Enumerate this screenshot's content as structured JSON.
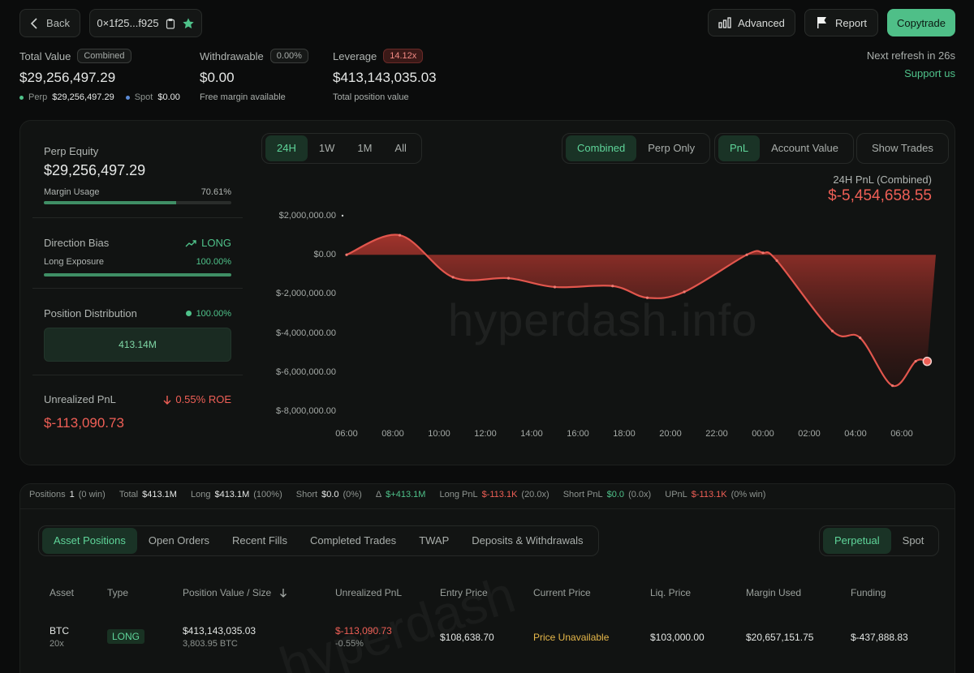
{
  "header": {
    "back_label": "Back",
    "address": "0×1f25...f925",
    "advanced_label": "Advanced",
    "report_label": "Report",
    "copytrade_label": "Copytrade",
    "refresh_text": "Next refresh in 26s",
    "support_label": "Support us"
  },
  "summary": {
    "total_value_label": "Total Value",
    "total_value_badge": "Combined",
    "total_value": "$29,256,497.29",
    "perp_label": "Perp",
    "perp_value": "$29,256,497.29",
    "spot_label": "Spot",
    "spot_value": "$0.00",
    "withdrawable_label": "Withdrawable",
    "withdrawable_badge": "0.00%",
    "withdrawable_value": "$0.00",
    "withdrawable_sub": "Free margin available",
    "leverage_label": "Leverage",
    "leverage_badge": "14.12x",
    "leverage_value": "$413,143,035.03",
    "leverage_sub": "Total position value"
  },
  "left_panel": {
    "perp_equity_label": "Perp Equity",
    "perp_equity_value": "$29,256,497.29",
    "margin_usage_label": "Margin Usage",
    "margin_usage_value": "70.61%",
    "margin_usage_fraction": 0.7061,
    "direction_bias_label": "Direction Bias",
    "direction_bias_value": "LONG",
    "long_exposure_label": "Long Exposure",
    "long_exposure_value": "100.00%",
    "long_exposure_fraction": 1.0,
    "position_distribution_label": "Position Distribution",
    "position_distribution_value": "100.00%",
    "distribution_block": "413.14M",
    "unrealized_pnl_label": "Unrealized PnL",
    "roe_value": "0.55% ROE",
    "unrealized_pnl_value": "$-113,090.73"
  },
  "chart_controls": {
    "timeframes": [
      "24H",
      "1W",
      "1M",
      "All"
    ],
    "active_timeframe": "24H",
    "modes": [
      "Combined",
      "Perp Only"
    ],
    "active_mode": "Combined",
    "metrics": [
      "PnL",
      "Account Value"
    ],
    "active_metric": "PnL",
    "show_trades_label": "Show Trades"
  },
  "chart_data": {
    "type": "area",
    "title": "24H PnL (Combined)",
    "headline_value": "$-5,454,658.55",
    "watermark": "hyperdash.info",
    "y_ticks": [
      "$2,000,000.00",
      "$0.00",
      "$-2,000,000.00",
      "$-4,000,000.00",
      "$-6,000,000.00",
      "$-8,000,000.00"
    ],
    "y_tick_values": [
      2000000,
      0,
      -2000000,
      -4000000,
      -6000000,
      -8000000
    ],
    "ylim": [
      -8000000,
      2000000
    ],
    "x_ticks": [
      "06:00",
      "08:00",
      "10:00",
      "12:00",
      "14:00",
      "16:00",
      "18:00",
      "20:00",
      "22:00",
      "00:00",
      "02:00",
      "04:00",
      "06:00"
    ],
    "x": [
      0,
      2.3,
      4.6,
      7,
      9,
      11.5,
      13,
      14.6,
      17.3,
      18,
      18.6,
      21,
      22.2,
      23.6,
      24.6,
      25.1
    ],
    "values": [
      0,
      1000000,
      -1150000,
      -1200000,
      -1650000,
      -1600000,
      -2200000,
      -1900000,
      0,
      100000,
      -300000,
      -3900000,
      -4250000,
      -6700000,
      -5450000,
      -5454658.55
    ],
    "series_color": "#e2564d",
    "grid": false
  },
  "stats_bar": {
    "positions_label": "Positions",
    "positions_value": "1",
    "positions_sub": "(0 win)",
    "total_label": "Total",
    "total_value": "$413.1M",
    "long_label": "Long",
    "long_value": "$413.1M",
    "long_sub": "(100%)",
    "short_label": "Short",
    "short_value": "$0.0",
    "short_sub": "(0%)",
    "delta_label": "Δ",
    "delta_value": "$+413.1M",
    "long_pnl_label": "Long PnL",
    "long_pnl_value": "$-113.1K",
    "long_pnl_sub": "(20.0x)",
    "short_pnl_label": "Short PnL",
    "short_pnl_value": "$0.0",
    "short_pnl_sub": "(0.0x)",
    "upnl_label": "UPnL",
    "upnl_value": "$-113.1K",
    "upnl_sub": "(0% win)"
  },
  "table_tabs": {
    "tabs": [
      "Asset Positions",
      "Open Orders",
      "Recent Fills",
      "Completed Trades",
      "TWAP",
      "Deposits & Withdrawals"
    ],
    "active_tab": "Asset Positions",
    "market_toggle": [
      "Perpetual",
      "Spot"
    ],
    "active_market": "Perpetual"
  },
  "table": {
    "headers": [
      "Asset",
      "Type",
      "Position Value / Size",
      "Unrealized PnL",
      "Entry Price",
      "Current Price",
      "Liq. Price",
      "Margin Used",
      "Funding"
    ],
    "rows": [
      {
        "asset": "BTC",
        "leverage": "20x",
        "type": "LONG",
        "position_value": "$413,143,035.03",
        "position_size": "3,803.95 BTC",
        "upnl": "$-113,090.73",
        "upnl_pct": "-0.55%",
        "entry_price": "$108,638.70",
        "current_price": "Price Unavailable",
        "liq_price": "$103,000.00",
        "margin_used": "$20,657,151.75",
        "funding": "$-437,888.83"
      }
    ]
  },
  "colors": {
    "accent_green": "#4fc28a",
    "accent_red": "#ef5f56",
    "copytrade_bg": "#4fbf88"
  }
}
